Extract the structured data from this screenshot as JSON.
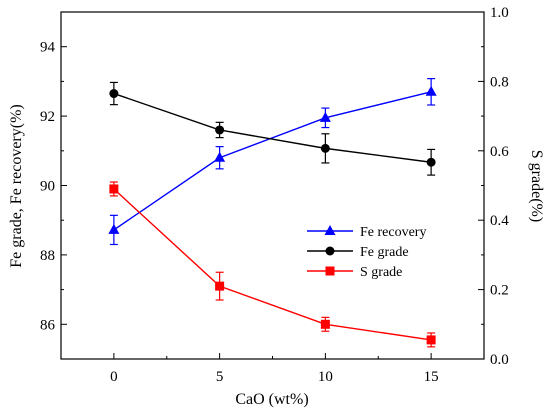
{
  "chart_data": {
    "type": "line",
    "xlabel": "CaO (wt%)",
    "ylabel_left": "Fe grade,  Fe recovery(%)",
    "ylabel_right": "S grade(%)",
    "x": [
      0,
      5,
      10,
      15
    ],
    "xlim": [
      -2.5,
      17.5
    ],
    "xticks": [
      "0",
      "5",
      "10",
      "15"
    ],
    "ylim_left": [
      85,
      95
    ],
    "yticks_left": [
      "86",
      "88",
      "90",
      "92",
      "94"
    ],
    "ylim_right": [
      0.0,
      1.0
    ],
    "yticks_right": [
      "0.0",
      "0.2",
      "0.4",
      "0.6",
      "0.8",
      "1.0"
    ],
    "legend_position": "center-right",
    "series": [
      {
        "name": "Fe recovery",
        "axis": "left",
        "color": "#0000ff",
        "marker": "triangle",
        "values": [
          88.72,
          90.8,
          91.95,
          92.7
        ],
        "errors": [
          0.42,
          0.32,
          0.28,
          0.38
        ]
      },
      {
        "name": "Fe grade",
        "axis": "left",
        "color": "#000000",
        "marker": "circle",
        "values": [
          92.65,
          91.6,
          91.07,
          90.67
        ],
        "errors": [
          0.32,
          0.22,
          0.42,
          0.37
        ]
      },
      {
        "name": "S grade",
        "axis": "right",
        "color": "#ff0000",
        "marker": "square",
        "values": [
          0.49,
          0.21,
          0.1,
          0.055
        ],
        "errors": [
          0.02,
          0.04,
          0.02,
          0.02
        ]
      }
    ]
  }
}
